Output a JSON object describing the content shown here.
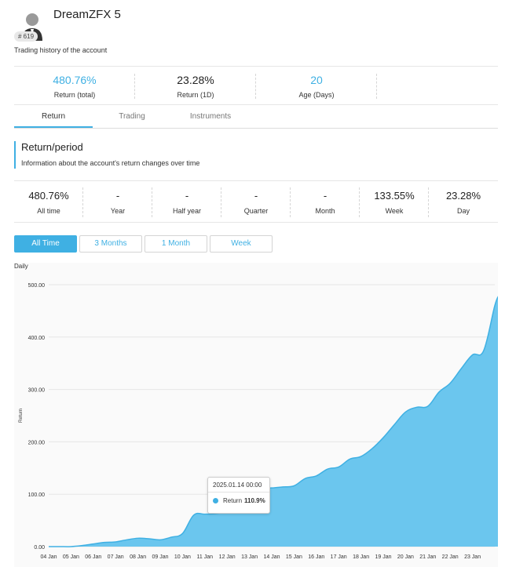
{
  "account": {
    "name": "DreamZFX 5",
    "rank": "# 619",
    "subtitle": "Trading history of the account",
    "avatar_icon": "user-avatar-icon"
  },
  "kpis": [
    {
      "value": "480.76%",
      "label": "Return (total)",
      "highlight": true
    },
    {
      "value": "23.28%",
      "label": "Return (1D)",
      "highlight": false
    },
    {
      "value": "20",
      "label": "Age (Days)",
      "highlight": true
    },
    {
      "value": "",
      "label": "",
      "highlight": false
    }
  ],
  "tabs": [
    {
      "label": "Return",
      "active": true
    },
    {
      "label": "Trading",
      "active": false
    },
    {
      "label": "Instruments",
      "active": false
    }
  ],
  "section": {
    "title": "Return/period",
    "description": "Information about the account's return changes over time"
  },
  "periods": [
    {
      "value": "480.76%",
      "label": "All time"
    },
    {
      "value": "-",
      "label": "Year"
    },
    {
      "value": "-",
      "label": "Half year"
    },
    {
      "value": "-",
      "label": "Quarter"
    },
    {
      "value": "-",
      "label": "Month"
    },
    {
      "value": "133.55%",
      "label": "Week"
    },
    {
      "value": "23.28%",
      "label": "Day"
    }
  ],
  "filters": [
    {
      "label": "All Time",
      "active": true
    },
    {
      "label": "3 Months",
      "active": false
    },
    {
      "label": "1 Month",
      "active": false
    },
    {
      "label": "Week",
      "active": false
    }
  ],
  "colors": {
    "accent": "#3fb0e3",
    "area_fill": "#6bc6ee",
    "area_line": "#3fb0e3"
  },
  "chart_data": {
    "type": "area",
    "caption": "Daily",
    "ylabel": "Return",
    "ylim": [
      0,
      500
    ],
    "yticks": [
      "0.00",
      "100.00",
      "200.00",
      "300.00",
      "400.00",
      "500.00"
    ],
    "x_labels": [
      "04 Jan",
      "05 Jan",
      "06 Jan",
      "07 Jan",
      "08 Jan",
      "09 Jan",
      "10 Jan",
      "11 Jan",
      "12 Jan",
      "13 Jan",
      "14 Jan",
      "15 Jan",
      "16 Jan",
      "17 Jan",
      "18 Jan",
      "19 Jan",
      "20 Jan",
      "21 Jan",
      "22 Jan",
      "23 Jan"
    ],
    "x": [
      0,
      0.5,
      1,
      1.5,
      2,
      2.5,
      3,
      3.5,
      4,
      4.5,
      5,
      5.5,
      6,
      6.5,
      7,
      7.5,
      8,
      8.5,
      9,
      9.5,
      10,
      10.5,
      11,
      11.5,
      12,
      12.5,
      13,
      13.5,
      14,
      14.5,
      15,
      15.5,
      16,
      16.5,
      17,
      17.5,
      18,
      18.5,
      19,
      19.5,
      20,
      20.2
    ],
    "values": [
      0,
      0,
      0,
      2,
      5,
      8,
      9,
      13,
      16,
      15,
      13,
      18,
      25,
      60,
      62,
      63,
      70,
      100,
      106,
      110.9,
      112,
      114,
      116,
      130,
      135,
      148,
      152,
      167,
      172,
      187,
      208,
      233,
      257,
      266,
      268,
      295,
      312,
      340,
      366,
      374,
      460,
      480.76
    ],
    "tooltip": {
      "date": "2025.01.14 00:00",
      "series": "Return",
      "value": "110.9%"
    }
  }
}
